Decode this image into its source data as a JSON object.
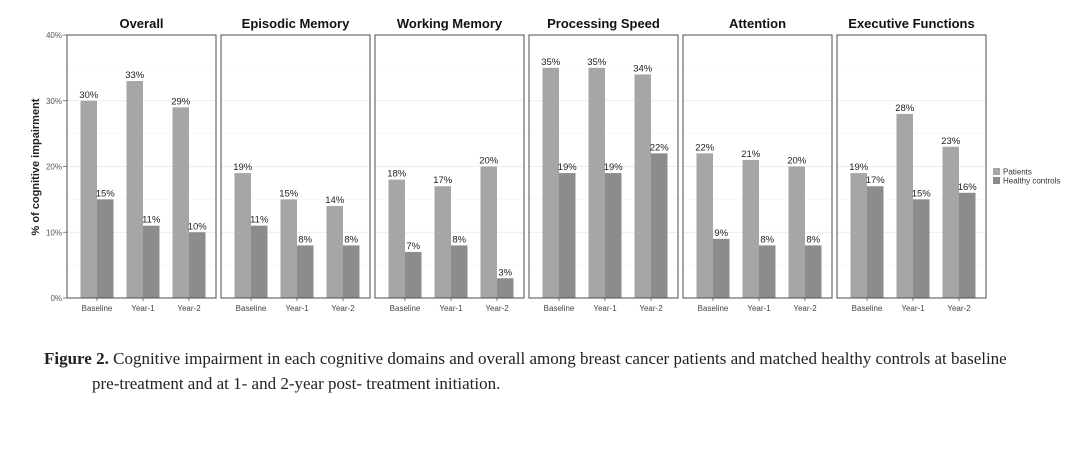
{
  "chart_data": {
    "type": "bar",
    "ylabel": "% of cognitive impairment",
    "ylim": [
      0,
      40
    ],
    "yticks": [
      "0%",
      "10%",
      "20%",
      "30%",
      "40%"
    ],
    "categories": [
      "Baseline",
      "Year-1",
      "Year-2"
    ],
    "legend": {
      "position": "right",
      "entries": [
        "Patients",
        "Healthy controls"
      ]
    },
    "colors": {
      "Patients": "#a6a6a6",
      "Healthy controls": "#8c8c8c"
    },
    "grid": true,
    "panels": [
      {
        "title": "Overall",
        "series": [
          {
            "name": "Patients",
            "values": [
              30,
              33,
              29
            ]
          },
          {
            "name": "Healthy controls",
            "values": [
              15,
              11,
              10
            ]
          }
        ]
      },
      {
        "title": "Episodic Memory",
        "series": [
          {
            "name": "Patients",
            "values": [
              19,
              15,
              14
            ]
          },
          {
            "name": "Healthy controls",
            "values": [
              11,
              8,
              8
            ]
          }
        ]
      },
      {
        "title": "Working Memory",
        "series": [
          {
            "name": "Patients",
            "values": [
              18,
              17,
              20
            ]
          },
          {
            "name": "Healthy controls",
            "values": [
              7,
              8,
              3
            ]
          }
        ]
      },
      {
        "title": "Processing Speed",
        "series": [
          {
            "name": "Patients",
            "values": [
              35,
              35,
              34
            ]
          },
          {
            "name": "Healthy controls",
            "values": [
              19,
              19,
              22
            ]
          }
        ]
      },
      {
        "title": "Attention",
        "series": [
          {
            "name": "Patients",
            "values": [
              22,
              21,
              20
            ]
          },
          {
            "name": "Healthy controls",
            "values": [
              9,
              8,
              8
            ]
          }
        ]
      },
      {
        "title": "Executive Functions",
        "series": [
          {
            "name": "Patients",
            "values": [
              19,
              28,
              23
            ]
          },
          {
            "name": "Healthy controls",
            "values": [
              17,
              15,
              16
            ]
          }
        ]
      }
    ]
  },
  "caption": {
    "label": "Figure 2.",
    "line1": "Cognitive impairment in each cognitive domains and overall among breast cancer  patients and matched healthy controls at baseline",
    "line2": "pre-treatment and at 1- and 2-year post- treatment initiation."
  }
}
